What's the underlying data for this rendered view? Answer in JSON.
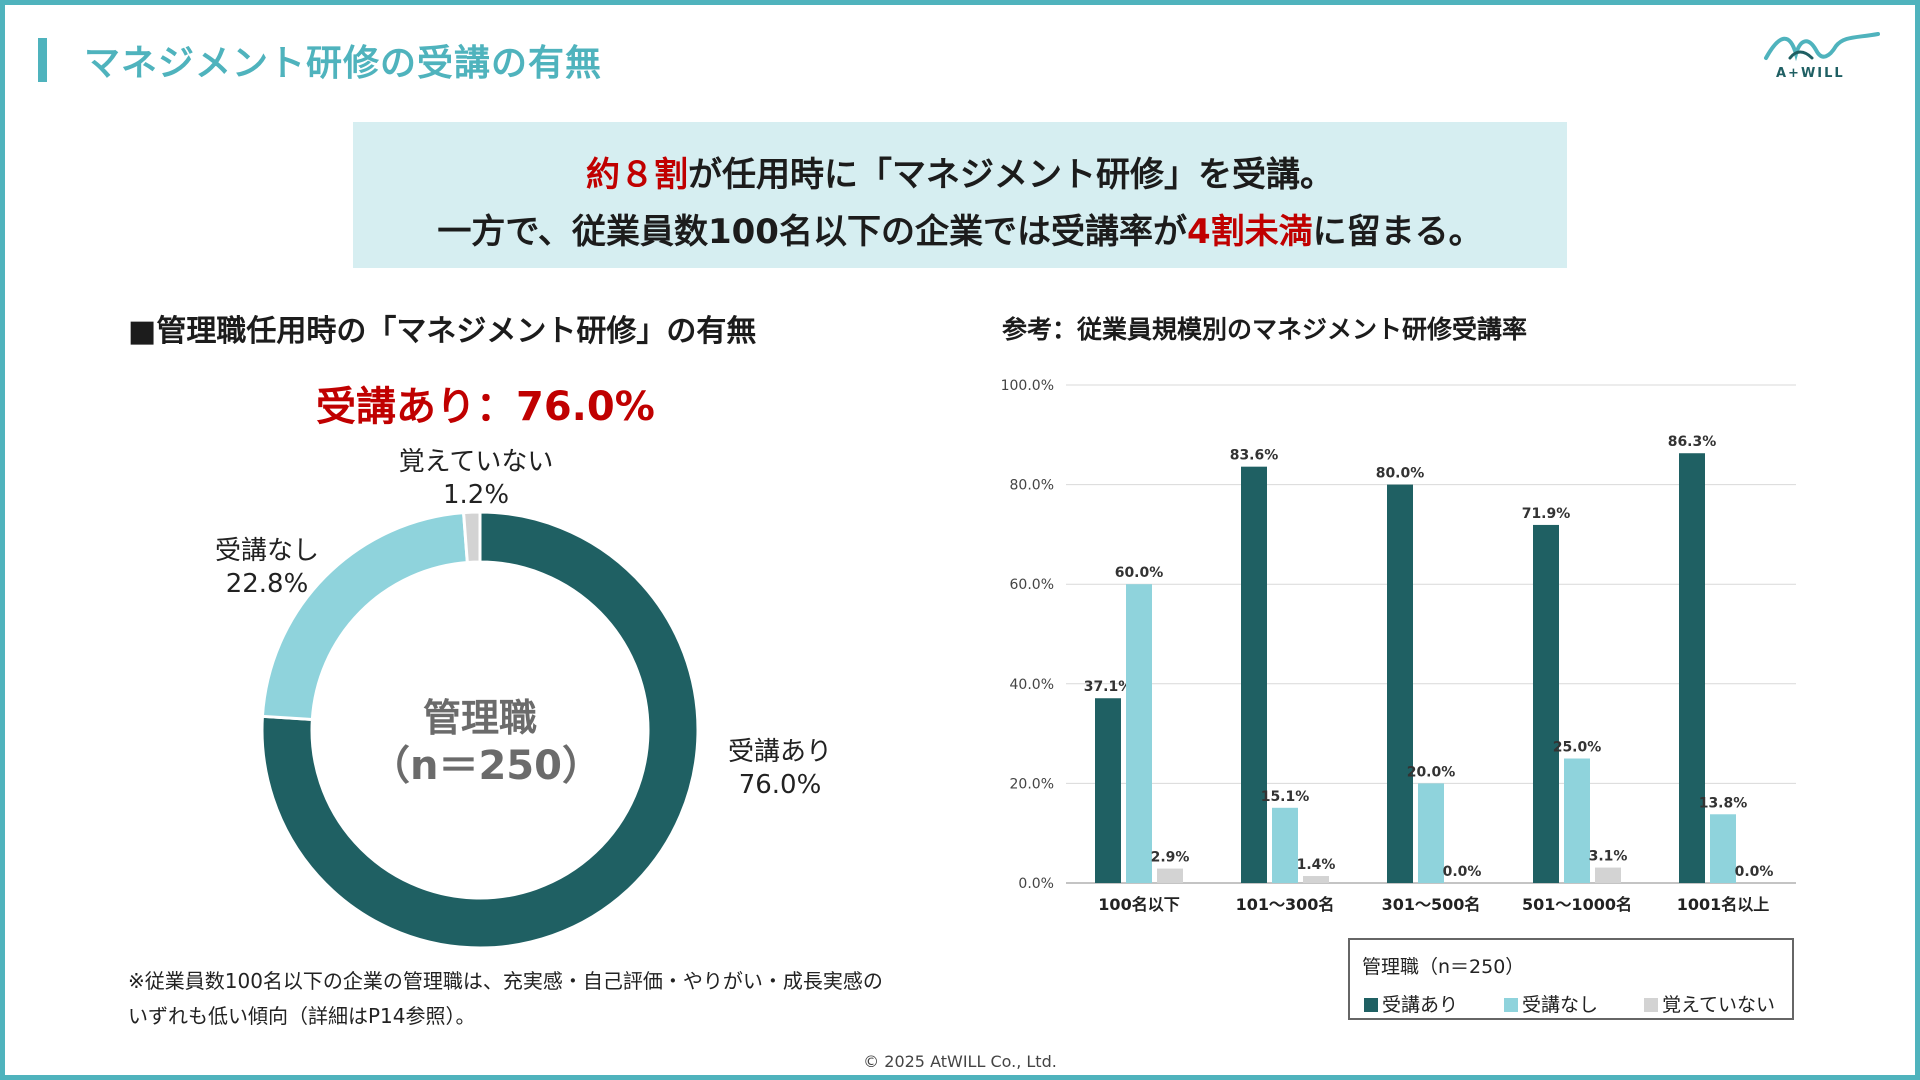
{
  "title": "マネジメント研修の受講の有無",
  "logo_text": "A+WILL",
  "summary": {
    "l1_red": "約８割",
    "l1_rest": "が任用時に「マネジメント研修」を受講。",
    "l2_pre": "一方で、従業員数100名以下の企業では受講率が",
    "l2_red": "4割未満",
    "l2_post": "に留まる。"
  },
  "left_heading": "■管理職任用時の「マネジメント研修」の有無",
  "highlight": "受講あり：76.0%",
  "donut": {
    "center_line1": "管理職",
    "center_line2": "（n＝250）",
    "slices": [
      {
        "name": "受講あり",
        "value": 76.0,
        "label": "76.0%",
        "color": "#1f6063"
      },
      {
        "name": "受講なし",
        "value": 22.8,
        "label": "22.8%",
        "color": "#8fd3dc"
      },
      {
        "name": "覚えていない",
        "value": 1.2,
        "label": "1.2%",
        "color": "#d3d3d3"
      }
    ]
  },
  "note": {
    "line1": "※従業員数100名以下の企業の管理職は、充実感・自己評価・やりがい・成長実感の",
    "line2": "いずれも低い傾向（詳細はP14参照）。"
  },
  "right_heading": "参考：従業員規模別のマネジメント研修受講率",
  "chart_data": {
    "type": "bar",
    "title": "参考：従業員規模別のマネジメント研修受講率",
    "categories": [
      "100名以下",
      "101～300名",
      "301～500名",
      "501～1000名",
      "1001名以上"
    ],
    "series": [
      {
        "name": "受講あり",
        "color": "#1f6063",
        "values": [
          37.1,
          83.6,
          80.0,
          71.9,
          86.3
        ]
      },
      {
        "name": "受講なし",
        "color": "#8fd3dc",
        "values": [
          60.0,
          15.1,
          20.0,
          25.0,
          13.8
        ]
      },
      {
        "name": "覚えていない",
        "color": "#d3d3d3",
        "values": [
          2.9,
          1.4,
          0.0,
          3.1,
          0.0
        ]
      }
    ],
    "ylim": [
      0,
      100
    ],
    "yticks": [
      "0.0%",
      "20.0%",
      "40.0%",
      "60.0%",
      "80.0%",
      "100.0%"
    ],
    "grid": true
  },
  "legend": {
    "title": "管理職（n＝250）",
    "items": [
      "受講あり",
      "受講なし",
      "覚えていない"
    ]
  },
  "footer": "© 2025 AtWILL Co., Ltd."
}
